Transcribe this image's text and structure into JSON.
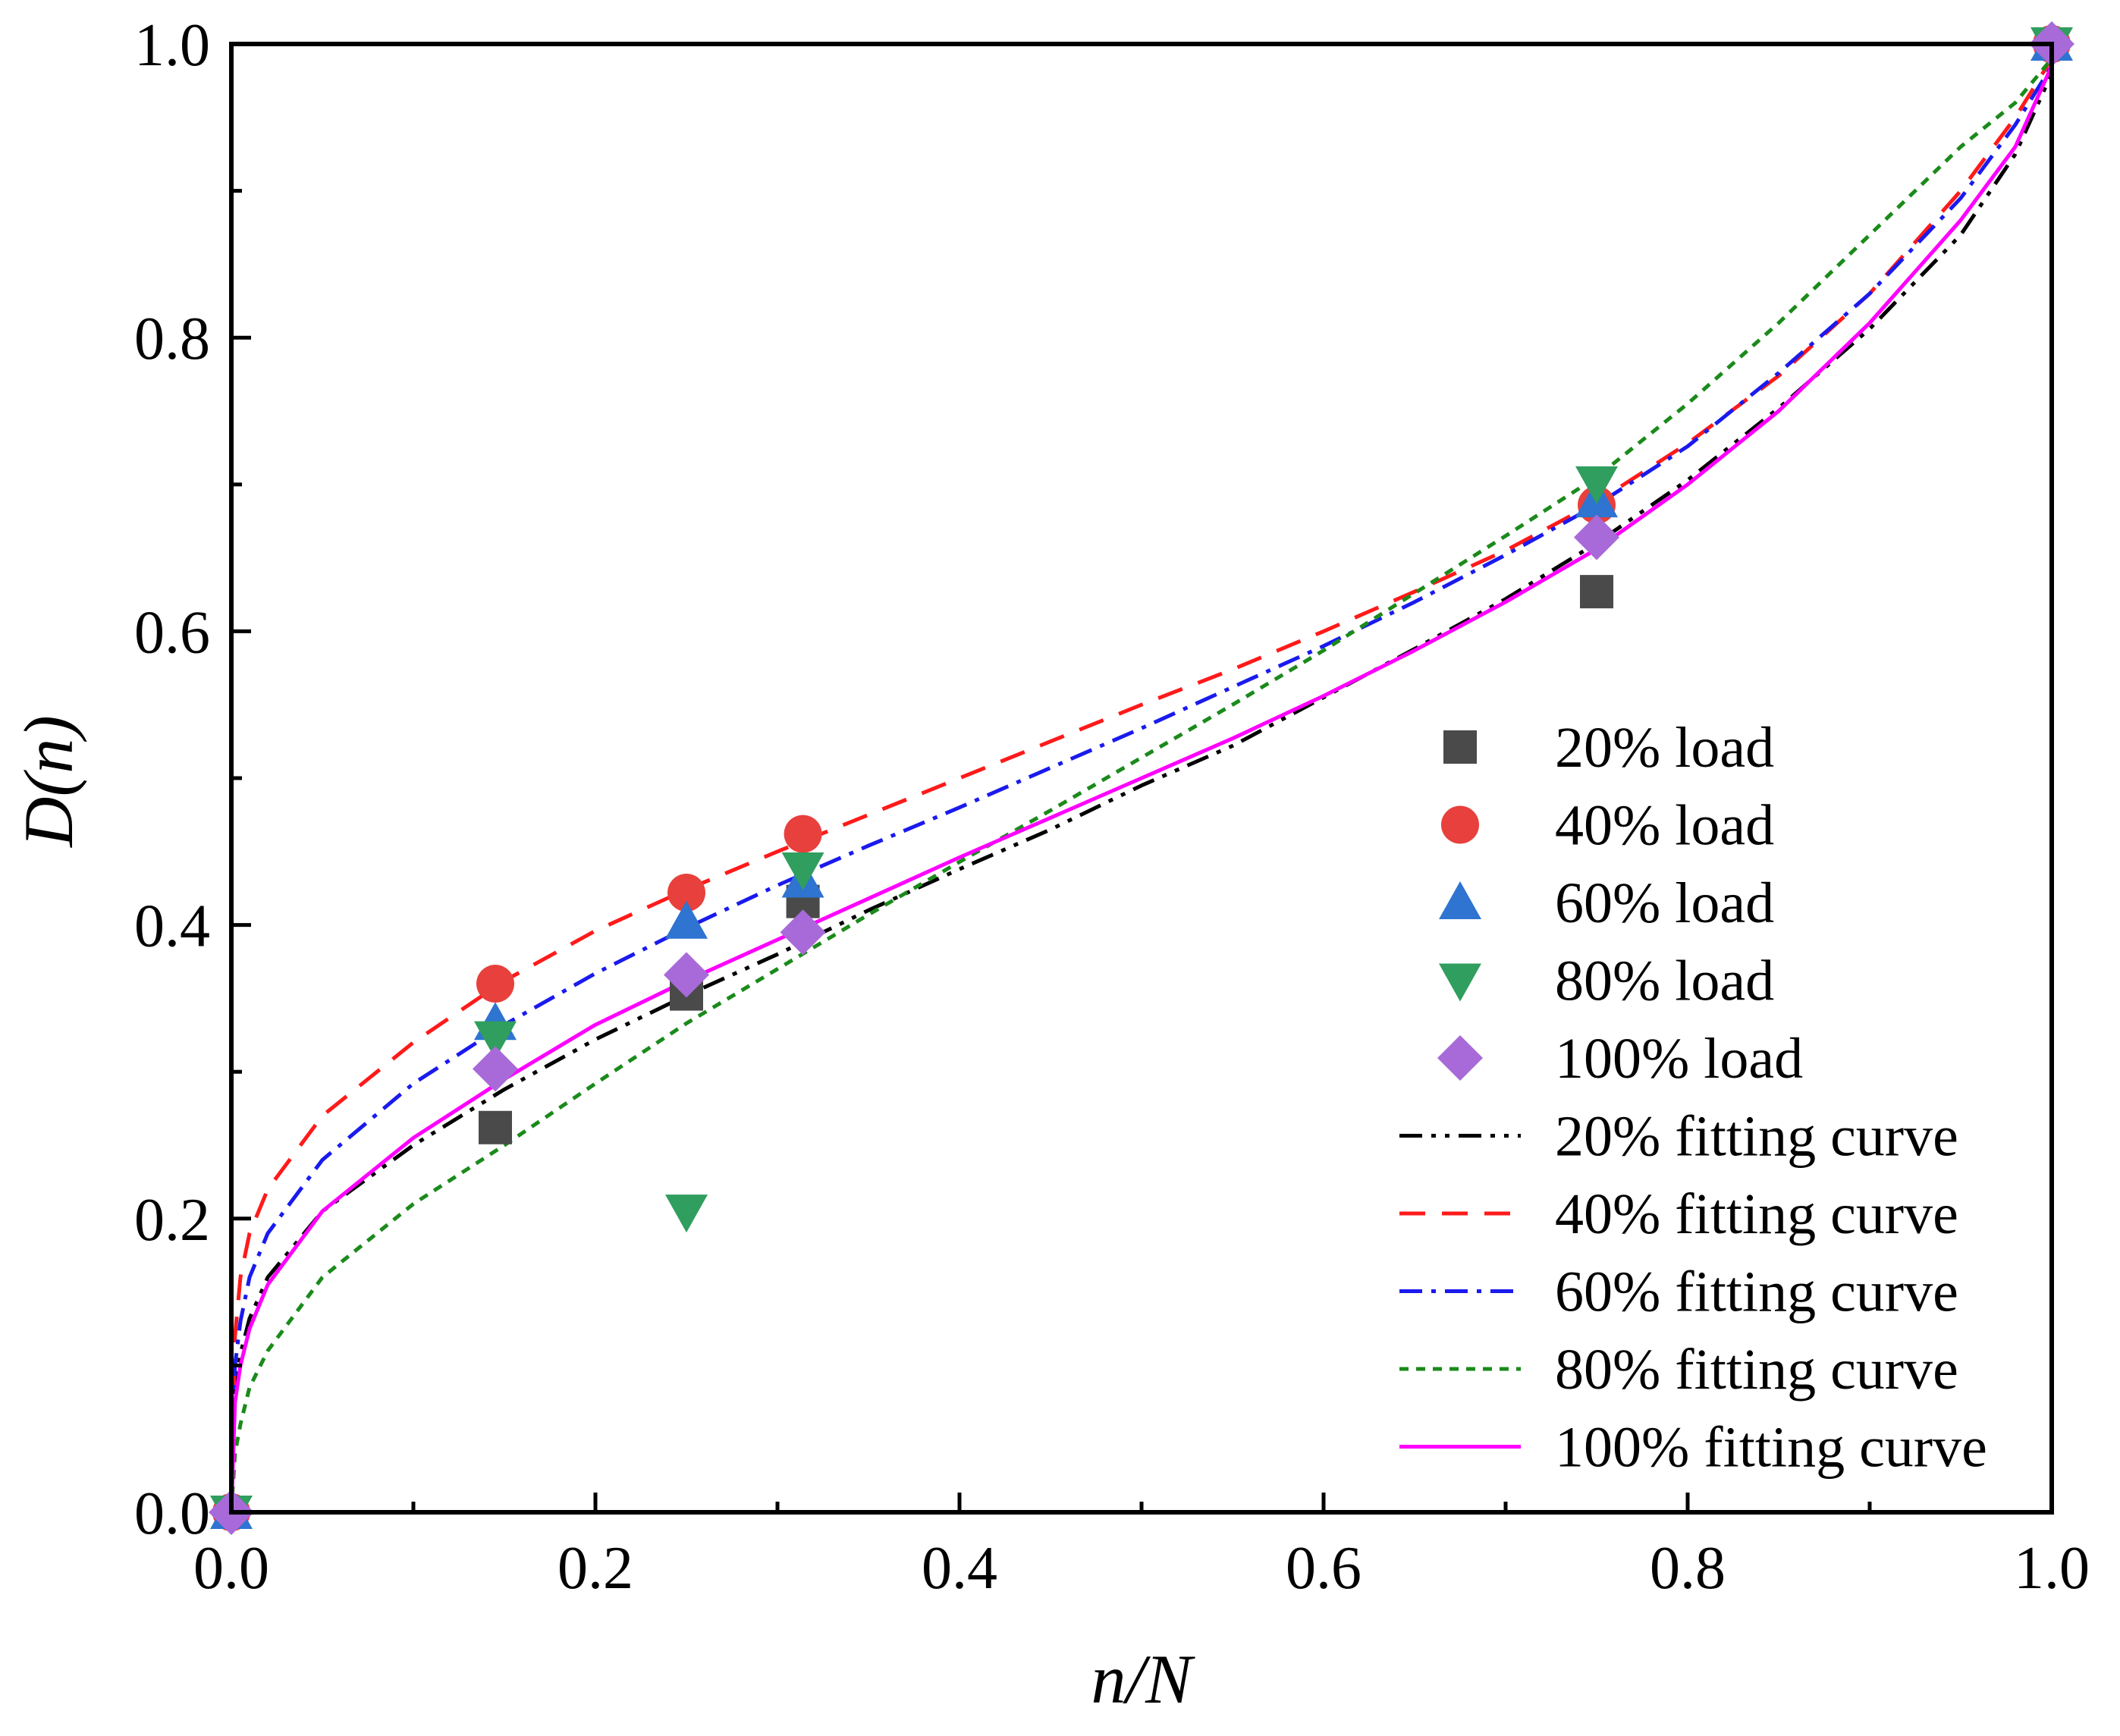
{
  "chart_data": {
    "type": "scatter",
    "title": "",
    "xlabel": "n/N",
    "ylabel": "D(n)",
    "xlim": [
      0.0,
      1.0
    ],
    "ylim": [
      0.0,
      1.0
    ],
    "x_ticks": [
      0.0,
      0.2,
      0.4,
      0.6,
      0.8,
      1.0
    ],
    "x_tick_labels": [
      "0.0",
      "0.2",
      "0.4",
      "0.6",
      "0.8",
      "1.0"
    ],
    "y_ticks": [
      0.0,
      0.2,
      0.4,
      0.6,
      0.8,
      1.0
    ],
    "y_tick_labels": [
      "0.0",
      "0.2",
      "0.4",
      "0.6",
      "0.8",
      "1.0"
    ],
    "grid": false,
    "legend_position": "right",
    "scatter_series": [
      {
        "name": "20% load",
        "marker": "square",
        "color": "#4a4a4a",
        "points": [
          [
            0.0,
            0.0
          ],
          [
            0.145,
            0.262
          ],
          [
            0.25,
            0.353
          ],
          [
            0.314,
            0.416
          ],
          [
            0.75,
            0.627
          ],
          [
            1.0,
            1.0
          ]
        ]
      },
      {
        "name": "40% load",
        "marker": "circle",
        "color": "#e8403c",
        "points": [
          [
            0.0,
            0.0
          ],
          [
            0.145,
            0.36
          ],
          [
            0.25,
            0.422
          ],
          [
            0.314,
            0.462
          ],
          [
            0.75,
            0.686
          ],
          [
            1.0,
            1.0
          ]
        ]
      },
      {
        "name": "60% load",
        "marker": "triangle-up",
        "color": "#2e74d0",
        "points": [
          [
            0.0,
            0.0
          ],
          [
            0.145,
            0.333
          ],
          [
            0.25,
            0.402
          ],
          [
            0.314,
            0.43
          ],
          [
            0.75,
            0.689
          ],
          [
            1.0,
            1.0
          ]
        ]
      },
      {
        "name": "80% load",
        "marker": "triangle-down",
        "color": "#2f9e5e",
        "points": [
          [
            0.0,
            0.0
          ],
          [
            0.145,
            0.323
          ],
          [
            0.25,
            0.205
          ],
          [
            0.314,
            0.438
          ],
          [
            0.75,
            0.701
          ],
          [
            1.0,
            1.0
          ]
        ]
      },
      {
        "name": "100% load",
        "marker": "diamond",
        "color": "#a86ad8",
        "points": [
          [
            0.0,
            0.0
          ],
          [
            0.145,
            0.302
          ],
          [
            0.25,
            0.366
          ],
          [
            0.314,
            0.395
          ],
          [
            0.75,
            0.664
          ],
          [
            1.0,
            1.0
          ]
        ]
      }
    ],
    "fit_series": [
      {
        "name": "20% fitting curve",
        "color": "#000000",
        "dash": "dashdotdot",
        "x": [
          0.0,
          0.002,
          0.005,
          0.01,
          0.02,
          0.05,
          0.1,
          0.15,
          0.2,
          0.25,
          0.3,
          0.35,
          0.4,
          0.45,
          0.5,
          0.55,
          0.6,
          0.65,
          0.7,
          0.75,
          0.8,
          0.85,
          0.9,
          0.95,
          0.98,
          1.0
        ],
        "y": [
          0.0,
          0.082,
          0.108,
          0.132,
          0.16,
          0.205,
          0.25,
          0.288,
          0.322,
          0.352,
          0.38,
          0.41,
          0.438,
          0.465,
          0.495,
          0.522,
          0.555,
          0.588,
          0.622,
          0.66,
          0.703,
          0.752,
          0.806,
          0.87,
          0.925,
          0.98
        ]
      },
      {
        "name": "40% fitting curve",
        "color": "#ff1a1a",
        "dash": "dash",
        "x": [
          0.0,
          0.002,
          0.005,
          0.01,
          0.02,
          0.05,
          0.1,
          0.15,
          0.2,
          0.25,
          0.3,
          0.35,
          0.4,
          0.45,
          0.5,
          0.55,
          0.6,
          0.65,
          0.7,
          0.75,
          0.8,
          0.85,
          0.9,
          0.95,
          0.98,
          1.0
        ],
        "y": [
          0.0,
          0.12,
          0.16,
          0.19,
          0.22,
          0.27,
          0.32,
          0.362,
          0.396,
          0.424,
          0.45,
          0.475,
          0.5,
          0.525,
          0.55,
          0.574,
          0.6,
          0.627,
          0.655,
          0.688,
          0.728,
          0.774,
          0.83,
          0.9,
          0.95,
          0.99
        ]
      },
      {
        "name": "60% fitting curve",
        "color": "#1a1aee",
        "dash": "dashdot",
        "x": [
          0.0,
          0.002,
          0.005,
          0.01,
          0.02,
          0.05,
          0.1,
          0.15,
          0.2,
          0.25,
          0.3,
          0.35,
          0.4,
          0.45,
          0.5,
          0.55,
          0.6,
          0.65,
          0.7,
          0.75,
          0.8,
          0.85,
          0.9,
          0.95,
          0.98,
          1.0
        ],
        "y": [
          0.0,
          0.1,
          0.13,
          0.16,
          0.19,
          0.24,
          0.292,
          0.332,
          0.367,
          0.398,
          0.427,
          0.454,
          0.48,
          0.507,
          0.534,
          0.562,
          0.59,
          0.62,
          0.652,
          0.686,
          0.726,
          0.776,
          0.83,
          0.895,
          0.945,
          0.985
        ]
      },
      {
        "name": "80% fitting curve",
        "color": "#1b8a1b",
        "dash": "dot",
        "x": [
          0.0,
          0.002,
          0.005,
          0.01,
          0.02,
          0.05,
          0.1,
          0.15,
          0.2,
          0.25,
          0.3,
          0.35,
          0.4,
          0.45,
          0.5,
          0.55,
          0.6,
          0.65,
          0.7,
          0.75,
          0.8,
          0.85,
          0.9,
          0.95,
          0.98,
          1.0
        ],
        "y": [
          0.0,
          0.04,
          0.06,
          0.085,
          0.11,
          0.16,
          0.21,
          0.25,
          0.292,
          0.333,
          0.37,
          0.407,
          0.443,
          0.478,
          0.514,
          0.55,
          0.587,
          0.626,
          0.665,
          0.705,
          0.755,
          0.81,
          0.87,
          0.93,
          0.96,
          0.99
        ]
      },
      {
        "name": "100% fitting curve",
        "color": "#ff00ff",
        "dash": "solid",
        "x": [
          0.0,
          0.002,
          0.005,
          0.01,
          0.02,
          0.05,
          0.1,
          0.15,
          0.2,
          0.25,
          0.3,
          0.35,
          0.4,
          0.45,
          0.5,
          0.55,
          0.6,
          0.65,
          0.7,
          0.75,
          0.8,
          0.85,
          0.9,
          0.95,
          0.98,
          1.0
        ],
        "y": [
          0.0,
          0.075,
          0.1,
          0.125,
          0.155,
          0.205,
          0.255,
          0.295,
          0.332,
          0.362,
          0.39,
          0.418,
          0.446,
          0.473,
          0.5,
          0.527,
          0.556,
          0.587,
          0.62,
          0.656,
          0.7,
          0.75,
          0.81,
          0.88,
          0.93,
          0.985
        ]
      }
    ]
  }
}
